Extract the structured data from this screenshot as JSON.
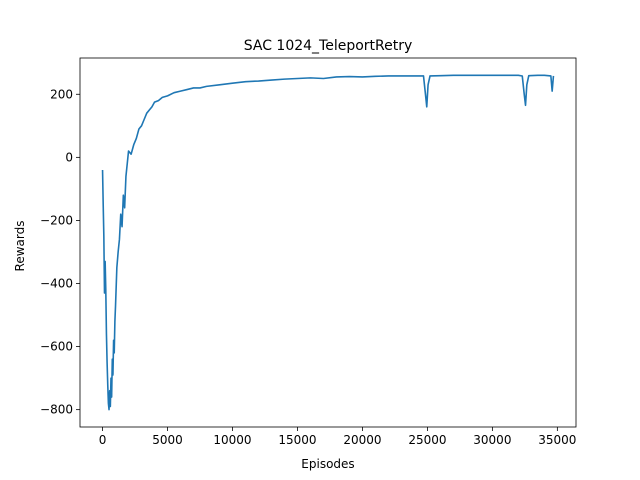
{
  "chart_data": {
    "type": "line",
    "title": "SAC 1024_TeleportRetry",
    "xlabel": "Episodes",
    "ylabel": "Rewards",
    "xlim": [
      -1735,
      36435
    ],
    "ylim": [
      -855,
      315
    ],
    "x_ticks": [
      0,
      5000,
      10000,
      15000,
      20000,
      25000,
      30000,
      35000
    ],
    "y_ticks": [
      -800,
      -600,
      -400,
      -200,
      0,
      200
    ],
    "grid": false,
    "legend": "none",
    "series": [
      {
        "color": "#1f77b4",
        "points": [
          [
            0,
            -40
          ],
          [
            50,
            -150
          ],
          [
            100,
            -250
          ],
          [
            150,
            -430
          ],
          [
            200,
            -330
          ],
          [
            250,
            -420
          ],
          [
            300,
            -560
          ],
          [
            350,
            -650
          ],
          [
            400,
            -720
          ],
          [
            450,
            -780
          ],
          [
            500,
            -800
          ],
          [
            550,
            -740
          ],
          [
            600,
            -790
          ],
          [
            650,
            -700
          ],
          [
            700,
            -760
          ],
          [
            750,
            -640
          ],
          [
            800,
            -690
          ],
          [
            850,
            -580
          ],
          [
            900,
            -620
          ],
          [
            950,
            -520
          ],
          [
            1000,
            -470
          ],
          [
            1100,
            -350
          ],
          [
            1200,
            -300
          ],
          [
            1300,
            -260
          ],
          [
            1400,
            -180
          ],
          [
            1500,
            -220
          ],
          [
            1600,
            -120
          ],
          [
            1700,
            -160
          ],
          [
            1800,
            -60
          ],
          [
            1900,
            -20
          ],
          [
            2000,
            20
          ],
          [
            2200,
            10
          ],
          [
            2400,
            40
          ],
          [
            2600,
            60
          ],
          [
            2800,
            90
          ],
          [
            3000,
            100
          ],
          [
            3200,
            120
          ],
          [
            3400,
            140
          ],
          [
            3600,
            150
          ],
          [
            3800,
            160
          ],
          [
            4000,
            175
          ],
          [
            4300,
            180
          ],
          [
            4600,
            190
          ],
          [
            5000,
            195
          ],
          [
            5500,
            205
          ],
          [
            6000,
            210
          ],
          [
            6500,
            215
          ],
          [
            7000,
            220
          ],
          [
            7500,
            220
          ],
          [
            8000,
            225
          ],
          [
            9000,
            230
          ],
          [
            10000,
            235
          ],
          [
            11000,
            240
          ],
          [
            12000,
            242
          ],
          [
            13000,
            245
          ],
          [
            14000,
            248
          ],
          [
            15000,
            250
          ],
          [
            16000,
            252
          ],
          [
            17000,
            250
          ],
          [
            18000,
            255
          ],
          [
            19000,
            256
          ],
          [
            20000,
            255
          ],
          [
            21000,
            257
          ],
          [
            22000,
            258
          ],
          [
            23000,
            258
          ],
          [
            24000,
            258
          ],
          [
            24700,
            258
          ],
          [
            24850,
            200
          ],
          [
            24950,
            160
          ],
          [
            25050,
            230
          ],
          [
            25200,
            258
          ],
          [
            26000,
            259
          ],
          [
            27000,
            260
          ],
          [
            28000,
            260
          ],
          [
            29000,
            260
          ],
          [
            30000,
            260
          ],
          [
            31000,
            260
          ],
          [
            32000,
            260
          ],
          [
            32300,
            258
          ],
          [
            32450,
            200
          ],
          [
            32550,
            165
          ],
          [
            32650,
            230
          ],
          [
            32800,
            259
          ],
          [
            33500,
            260
          ],
          [
            34000,
            260
          ],
          [
            34500,
            258
          ],
          [
            34600,
            210
          ],
          [
            34700,
            258
          ]
        ]
      }
    ]
  }
}
